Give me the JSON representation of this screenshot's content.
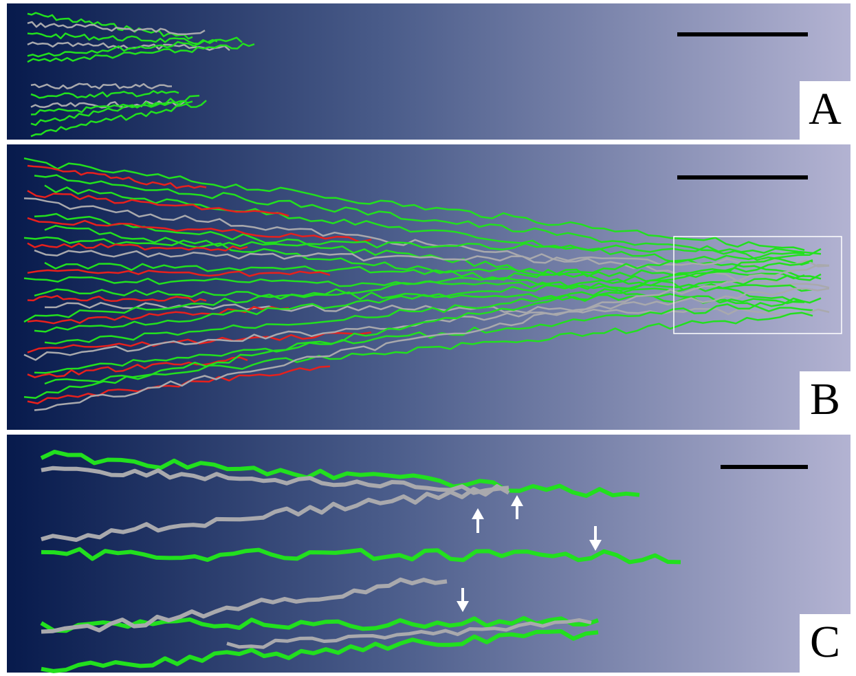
{
  "panels": [
    {
      "label": "A"
    },
    {
      "label": "B"
    },
    {
      "label": "C"
    }
  ]
}
